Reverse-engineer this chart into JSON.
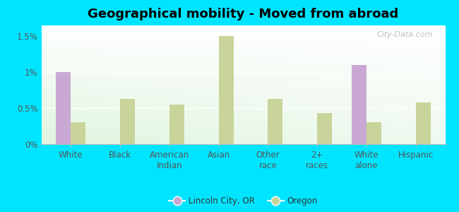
{
  "title": "Geographical mobility - Moved from abroad",
  "categories": [
    "White",
    "Black",
    "American\nIndian",
    "Asian",
    "Other\nrace",
    "2+\nraces",
    "White\nalone",
    "Hispanic"
  ],
  "lincoln_city": [
    1.0,
    0.0,
    0.0,
    0.0,
    0.0,
    0.0,
    1.1,
    0.0
  ],
  "oregon": [
    0.3,
    0.63,
    0.55,
    1.5,
    0.63,
    0.43,
    0.3,
    0.58
  ],
  "lincoln_color": "#c9a8d4",
  "oregon_color": "#c8d49a",
  "outer_bg": "#00e5ff",
  "yticks": [
    0.0,
    0.5,
    1.0,
    1.5
  ],
  "ylabels": [
    "0%",
    "0.5%",
    "1%",
    "1.5%"
  ],
  "ylim": [
    0,
    1.65
  ],
  "legend_lincoln": "Lincoln City, OR",
  "legend_oregon": "Oregon",
  "watermark": "City-Data.com",
  "title_fontsize": 13,
  "tick_fontsize": 8.5,
  "bar_width": 0.3
}
